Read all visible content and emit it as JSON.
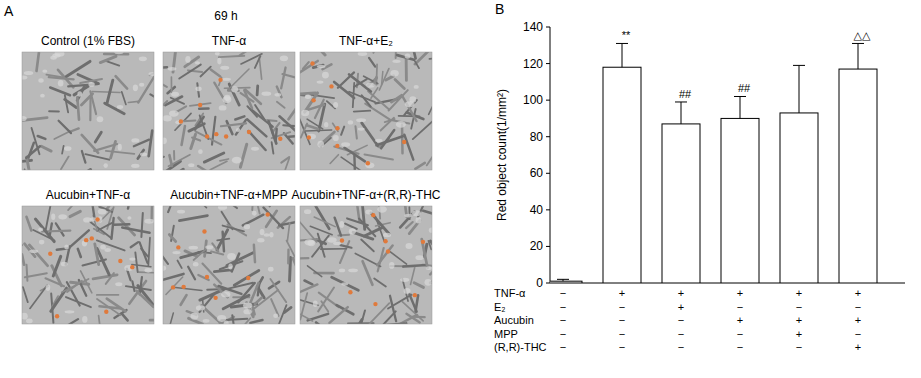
{
  "panel_a": {
    "label": "A",
    "time": "69 h",
    "images": [
      {
        "title": "Control (1% FBS)"
      },
      {
        "title": "TNF-α"
      },
      {
        "title": "TNF-α+E₂"
      },
      {
        "title": "Aucubin+TNF-α"
      },
      {
        "title": "Aucubin+TNF-α+MPP"
      },
      {
        "title": "Aucubin+TNF-α+(R,R)-THC"
      }
    ]
  },
  "chart_data": {
    "type": "bar",
    "panel_label": "B",
    "y_label": "Red object count(1/mm²)",
    "categories": [
      null,
      null,
      null,
      null,
      null,
      null
    ],
    "values": [
      1,
      118,
      87,
      90,
      93,
      117
    ],
    "errors": [
      1,
      13,
      12,
      12,
      26,
      14
    ],
    "color": "#ffffff",
    "ylim": [
      0,
      140
    ],
    "yticks": [
      0,
      20,
      40,
      60,
      80,
      100,
      120,
      140
    ],
    "annotations": [
      {
        "index": 1,
        "text": "**"
      },
      {
        "index": 2,
        "text": "##"
      },
      {
        "index": 3,
        "text": "##"
      },
      {
        "index": 5,
        "text": "△△"
      }
    ],
    "treatments": [
      {
        "name": "TNF-α",
        "signs": [
          "−",
          "+",
          "+",
          "+",
          "+",
          "+"
        ]
      },
      {
        "name": "E₂",
        "signs": [
          "−",
          "−",
          "+",
          "−",
          "−",
          "−"
        ]
      },
      {
        "name": "Aucubin",
        "signs": [
          "−",
          "−",
          "−",
          "+",
          "+",
          "+"
        ]
      },
      {
        "name": "MPP",
        "signs": [
          "−",
          "−",
          "−",
          "−",
          "+",
          "−"
        ]
      },
      {
        "name": "(R,R)-THC",
        "signs": [
          "−",
          "−",
          "−",
          "−",
          "−",
          "+"
        ]
      }
    ]
  }
}
